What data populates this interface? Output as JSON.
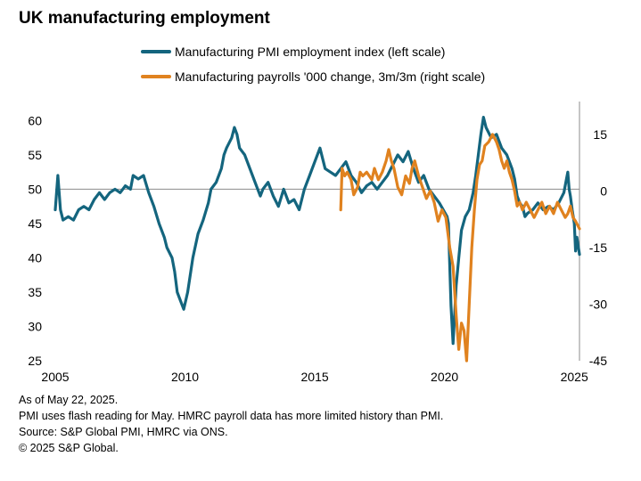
{
  "chart_data": {
    "type": "line",
    "title": "UK manufacturing employment",
    "x_ticks": [
      "2005",
      "2010",
      "2015",
      "2020",
      "2025"
    ],
    "x_range": [
      2005,
      2025.2
    ],
    "left_axis": {
      "ticks": [
        "60",
        "55",
        "50",
        "45",
        "40",
        "35",
        "30",
        "25"
      ],
      "range": [
        25,
        62
      ]
    },
    "right_axis": {
      "ticks": [
        "15",
        "0",
        "-15",
        "-30",
        "-45"
      ],
      "range": [
        -45,
        22.3
      ]
    },
    "reference_line": {
      "axis": "left",
      "value": 50
    },
    "series": [
      {
        "name": "Manufacturing PMI employment index (left scale)",
        "axis": "left",
        "color": "#14657e",
        "points": [
          [
            2005.0,
            47
          ],
          [
            2005.1,
            52
          ],
          [
            2005.2,
            47
          ],
          [
            2005.3,
            45.5
          ],
          [
            2005.5,
            46
          ],
          [
            2005.7,
            45.5
          ],
          [
            2005.9,
            47
          ],
          [
            2006.1,
            47.5
          ],
          [
            2006.3,
            47
          ],
          [
            2006.5,
            48.5
          ],
          [
            2006.7,
            49.5
          ],
          [
            2006.9,
            48.5
          ],
          [
            2007.1,
            49.5
          ],
          [
            2007.3,
            50
          ],
          [
            2007.5,
            49.5
          ],
          [
            2007.7,
            50.5
          ],
          [
            2007.9,
            50
          ],
          [
            2008.0,
            52
          ],
          [
            2008.2,
            51.5
          ],
          [
            2008.4,
            52
          ],
          [
            2008.6,
            49.5
          ],
          [
            2008.8,
            47.5
          ],
          [
            2009.0,
            45
          ],
          [
            2009.2,
            43
          ],
          [
            2009.3,
            41.5
          ],
          [
            2009.5,
            40
          ],
          [
            2009.6,
            38
          ],
          [
            2009.7,
            35
          ],
          [
            2009.8,
            34
          ],
          [
            2009.95,
            32.5
          ],
          [
            2010.1,
            35
          ],
          [
            2010.3,
            40
          ],
          [
            2010.5,
            43.5
          ],
          [
            2010.7,
            45.5
          ],
          [
            2010.9,
            48
          ],
          [
            2011.0,
            50
          ],
          [
            2011.2,
            51
          ],
          [
            2011.4,
            53
          ],
          [
            2011.5,
            55
          ],
          [
            2011.6,
            56
          ],
          [
            2011.8,
            57.5
          ],
          [
            2011.9,
            59
          ],
          [
            2012.0,
            58
          ],
          [
            2012.1,
            56
          ],
          [
            2012.3,
            55
          ],
          [
            2012.5,
            53
          ],
          [
            2012.7,
            51
          ],
          [
            2012.9,
            49
          ],
          [
            2013.0,
            50
          ],
          [
            2013.2,
            51
          ],
          [
            2013.4,
            49
          ],
          [
            2013.6,
            47.5
          ],
          [
            2013.8,
            50
          ],
          [
            2014.0,
            48
          ],
          [
            2014.2,
            48.5
          ],
          [
            2014.4,
            47
          ],
          [
            2014.6,
            50
          ],
          [
            2014.8,
            52
          ],
          [
            2015.0,
            54
          ],
          [
            2015.2,
            56
          ],
          [
            2015.4,
            53
          ],
          [
            2015.6,
            52.5
          ],
          [
            2015.8,
            52
          ],
          [
            2016.0,
            53
          ],
          [
            2016.2,
            54
          ],
          [
            2016.4,
            52
          ],
          [
            2016.6,
            51
          ],
          [
            2016.8,
            49.5
          ],
          [
            2017.0,
            50.5
          ],
          [
            2017.2,
            51
          ],
          [
            2017.4,
            50
          ],
          [
            2017.6,
            51
          ],
          [
            2017.8,
            52
          ],
          [
            2018.0,
            53.5
          ],
          [
            2018.2,
            55
          ],
          [
            2018.4,
            54
          ],
          [
            2018.6,
            55.5
          ],
          [
            2018.8,
            53
          ],
          [
            2019.0,
            51
          ],
          [
            2019.2,
            52
          ],
          [
            2019.4,
            50
          ],
          [
            2019.6,
            49
          ],
          [
            2019.8,
            48
          ],
          [
            2019.95,
            47
          ],
          [
            2020.1,
            46
          ],
          [
            2020.15,
            45
          ],
          [
            2020.25,
            33
          ],
          [
            2020.33,
            27.5
          ],
          [
            2020.45,
            36
          ],
          [
            2020.55,
            40
          ],
          [
            2020.65,
            44
          ],
          [
            2020.8,
            46
          ],
          [
            2020.95,
            47
          ],
          [
            2021.1,
            49.5
          ],
          [
            2021.2,
            52
          ],
          [
            2021.3,
            55
          ],
          [
            2021.4,
            58
          ],
          [
            2021.5,
            60.5
          ],
          [
            2021.6,
            59
          ],
          [
            2021.8,
            57.5
          ],
          [
            2022.0,
            58
          ],
          [
            2022.2,
            56
          ],
          [
            2022.4,
            55
          ],
          [
            2022.6,
            53
          ],
          [
            2022.7,
            51.5
          ],
          [
            2022.8,
            49
          ],
          [
            2022.9,
            48
          ],
          [
            2023.0,
            47.5
          ],
          [
            2023.1,
            46
          ],
          [
            2023.2,
            46.5
          ],
          [
            2023.4,
            47
          ],
          [
            2023.6,
            48
          ],
          [
            2023.8,
            47
          ],
          [
            2024.0,
            47.5
          ],
          [
            2024.2,
            47
          ],
          [
            2024.4,
            48
          ],
          [
            2024.6,
            49.5
          ],
          [
            2024.7,
            51.5
          ],
          [
            2024.75,
            52.5
          ],
          [
            2024.8,
            50
          ],
          [
            2024.85,
            49
          ],
          [
            2024.92,
            47
          ],
          [
            2025.0,
            45
          ],
          [
            2025.05,
            41
          ],
          [
            2025.1,
            43
          ],
          [
            2025.2,
            40.5
          ]
        ]
      },
      {
        "name": "Manufacturing payrolls '000 change, 3m/3m (right scale)",
        "axis": "right",
        "color": "#e0821f",
        "points": [
          [
            2016.0,
            -5
          ],
          [
            2016.05,
            6
          ],
          [
            2016.15,
            4
          ],
          [
            2016.25,
            5
          ],
          [
            2016.4,
            3
          ],
          [
            2016.5,
            -1
          ],
          [
            2016.65,
            1
          ],
          [
            2016.75,
            5
          ],
          [
            2016.85,
            4
          ],
          [
            2017.0,
            5
          ],
          [
            2017.2,
            3
          ],
          [
            2017.3,
            6
          ],
          [
            2017.45,
            3
          ],
          [
            2017.6,
            5
          ],
          [
            2017.75,
            8
          ],
          [
            2017.85,
            11
          ],
          [
            2017.95,
            8
          ],
          [
            2018.05,
            6
          ],
          [
            2018.2,
            1
          ],
          [
            2018.35,
            -1
          ],
          [
            2018.5,
            4
          ],
          [
            2018.65,
            2
          ],
          [
            2018.75,
            6
          ],
          [
            2018.85,
            8
          ],
          [
            2019.0,
            4
          ],
          [
            2019.15,
            1
          ],
          [
            2019.3,
            -2
          ],
          [
            2019.45,
            0
          ],
          [
            2019.6,
            -3
          ],
          [
            2019.75,
            -8
          ],
          [
            2019.9,
            -5
          ],
          [
            2020.05,
            -7
          ],
          [
            2020.2,
            -15
          ],
          [
            2020.33,
            -20
          ],
          [
            2020.45,
            -33
          ],
          [
            2020.55,
            -42
          ],
          [
            2020.65,
            -35
          ],
          [
            2020.75,
            -37
          ],
          [
            2020.85,
            -45
          ],
          [
            2020.95,
            -30
          ],
          [
            2021.05,
            -15
          ],
          [
            2021.15,
            -5
          ],
          [
            2021.25,
            3
          ],
          [
            2021.35,
            7
          ],
          [
            2021.45,
            8
          ],
          [
            2021.55,
            12
          ],
          [
            2021.7,
            13
          ],
          [
            2021.85,
            15
          ],
          [
            2022.0,
            13
          ],
          [
            2022.1,
            11
          ],
          [
            2022.2,
            8
          ],
          [
            2022.3,
            6
          ],
          [
            2022.4,
            8
          ],
          [
            2022.5,
            5
          ],
          [
            2022.6,
            3
          ],
          [
            2022.7,
            0
          ],
          [
            2022.8,
            -4
          ],
          [
            2022.9,
            -3
          ],
          [
            2023.0,
            -5
          ],
          [
            2023.15,
            -3
          ],
          [
            2023.3,
            -5
          ],
          [
            2023.45,
            -7
          ],
          [
            2023.6,
            -5
          ],
          [
            2023.75,
            -3
          ],
          [
            2023.9,
            -6
          ],
          [
            2024.05,
            -4
          ],
          [
            2024.2,
            -6
          ],
          [
            2024.35,
            -3
          ],
          [
            2024.5,
            -5
          ],
          [
            2024.65,
            -7
          ],
          [
            2024.75,
            -6
          ],
          [
            2024.85,
            -4
          ],
          [
            2024.95,
            -7
          ],
          [
            2025.05,
            -8
          ],
          [
            2025.2,
            -10
          ]
        ]
      }
    ]
  },
  "notes": [
    "As of May 22, 2025.",
    "PMI uses flash reading for May.  HMRC payroll data has more limited history than PMI.",
    "Source: S&P Global PMI, HMRC via ONS.",
    "© 2025 S&P Global."
  ]
}
